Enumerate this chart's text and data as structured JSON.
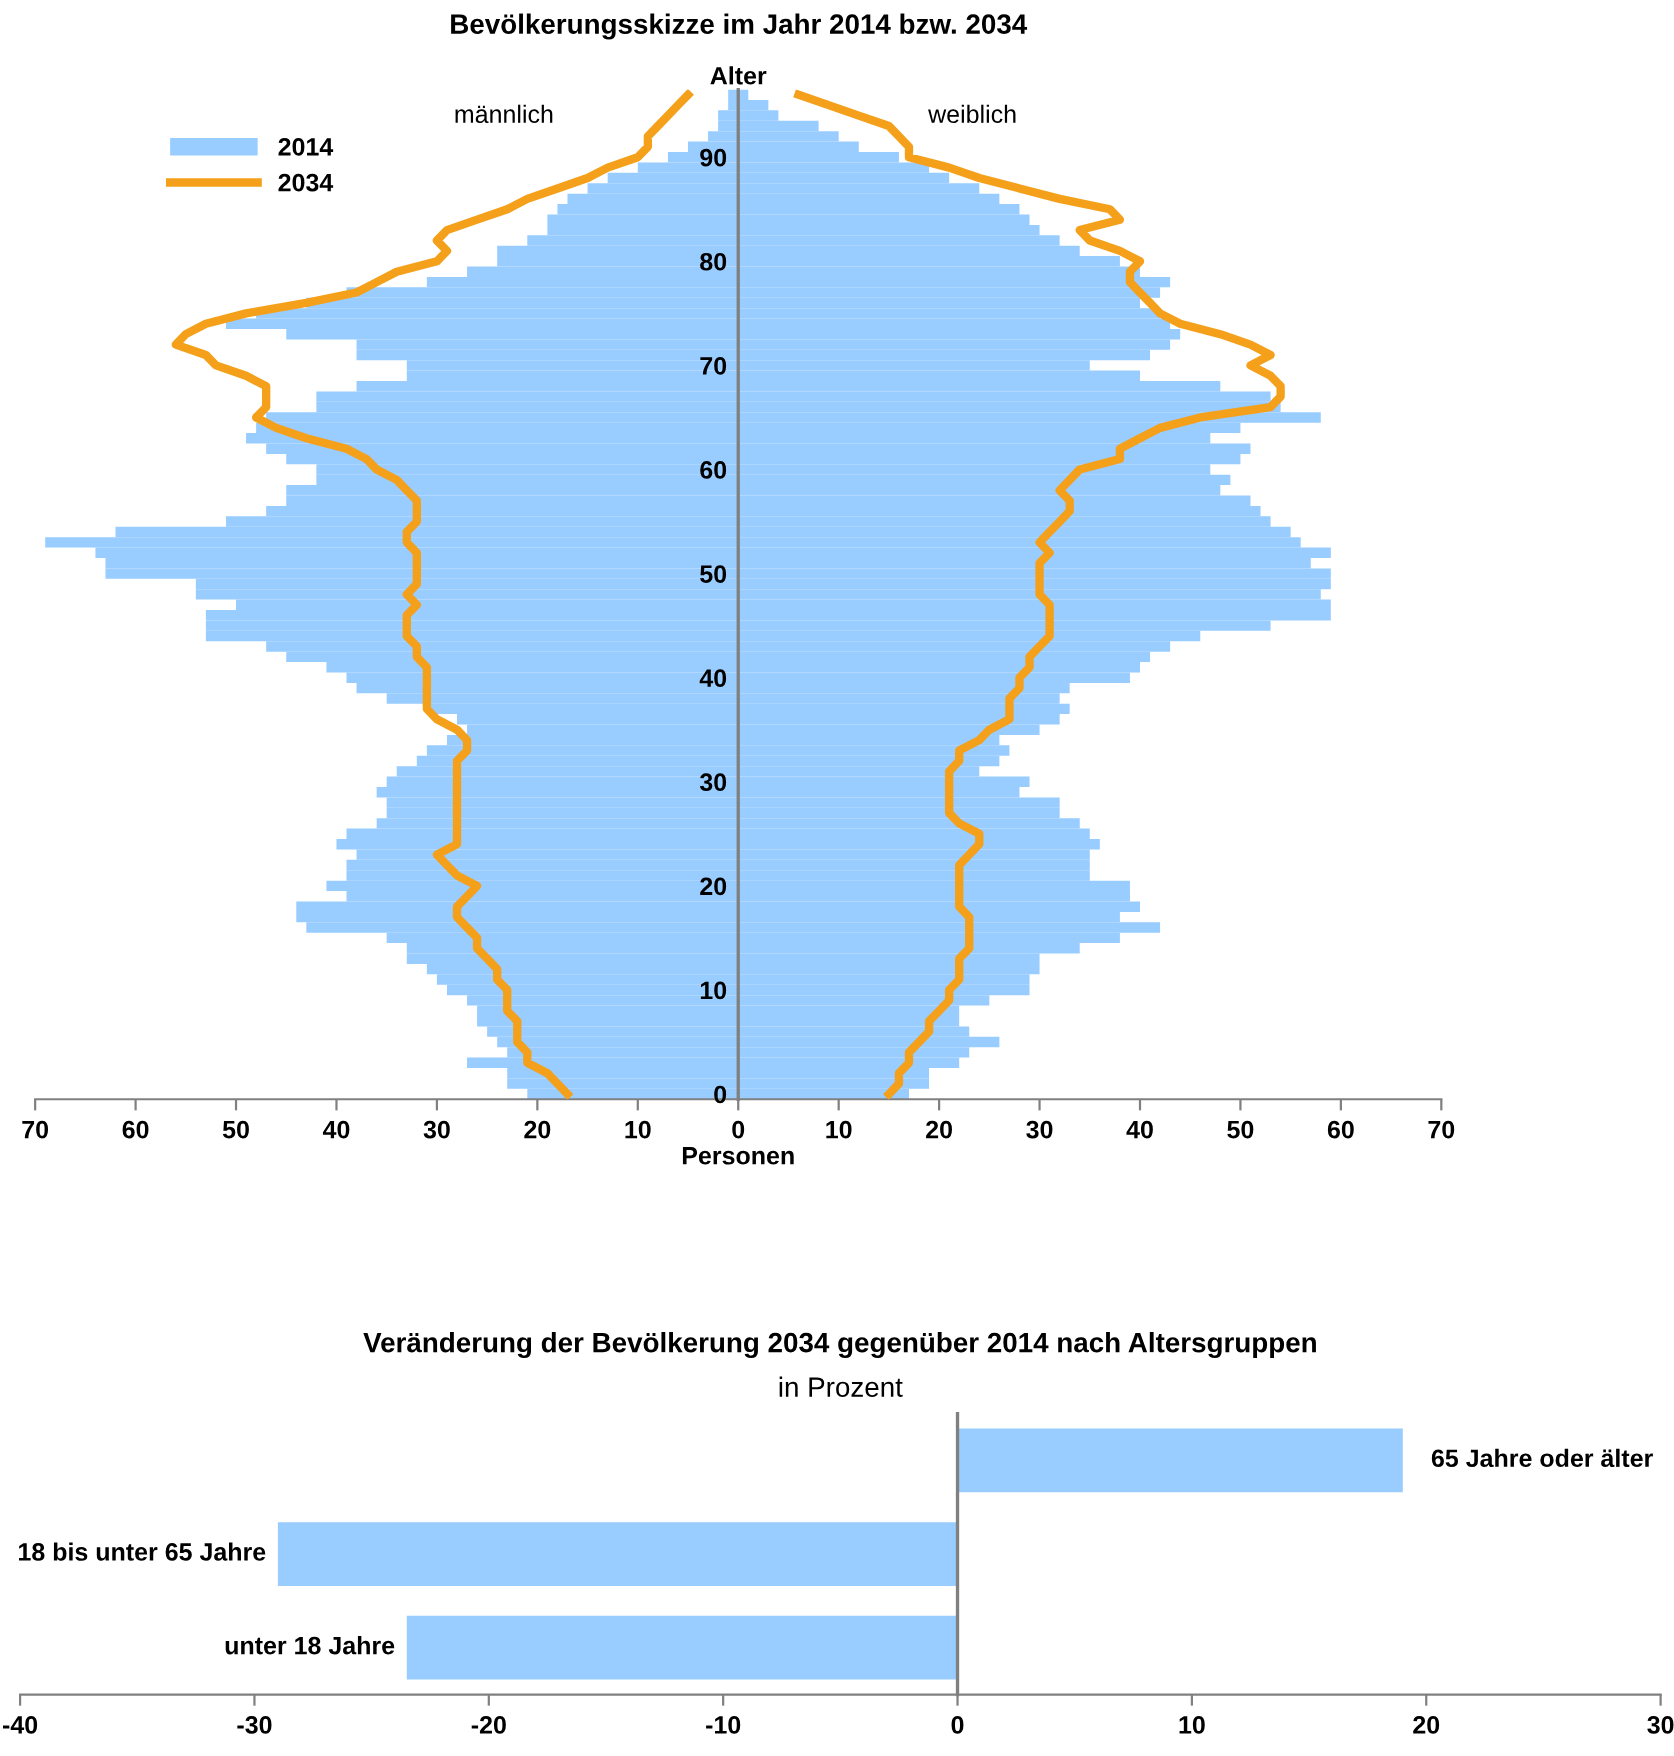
{
  "chart_data": [
    {
      "type": "bar",
      "orientation": "horizontal",
      "title": "Bevölkerungsskizze im Jahr 2014 bzw. 2034",
      "xlabel": "Personen",
      "ylabel": "Alter",
      "annotations": [
        "männlich",
        "weiblich"
      ],
      "categories": [
        null,
        null,
        null,
        null,
        null,
        null,
        "90",
        null,
        null,
        null,
        null,
        null,
        null,
        null,
        null,
        null,
        "80",
        null,
        null,
        null,
        null,
        null,
        null,
        null,
        null,
        null,
        "70",
        null,
        null,
        null,
        null,
        null,
        null,
        null,
        null,
        null,
        "60",
        null,
        null,
        null,
        null,
        null,
        null,
        null,
        null,
        null,
        "50",
        null,
        null,
        null,
        null,
        null,
        null,
        null,
        null,
        null,
        "40",
        null,
        null,
        null,
        null,
        null,
        null,
        null,
        null,
        null,
        "30",
        null,
        null,
        null,
        null,
        null,
        null,
        null,
        null,
        null,
        "20",
        null,
        null,
        null,
        null,
        null,
        null,
        null,
        null,
        null,
        "10",
        null,
        null,
        null,
        null,
        null,
        null,
        null,
        null,
        null,
        "0"
      ],
      "series": [
        {
          "name": "2014",
          "type": "bar",
          "color": "#99ccff",
          "values": [
            -1,
            -1,
            -2,
            -2,
            -3,
            -5,
            -7,
            -10,
            -13,
            -15,
            -17,
            -18,
            -19,
            -19,
            -21,
            -24,
            -24,
            -27,
            -31,
            -39,
            -43,
            -48,
            -51,
            -45,
            -38,
            -38,
            -33,
            -33,
            -38,
            -42,
            -42,
            -47,
            -48,
            -49,
            -47,
            -45,
            -42,
            -42,
            -45,
            -45,
            -47,
            -51,
            -62,
            -69,
            -64,
            -63,
            -63,
            -54,
            -54,
            -50,
            -53,
            -53,
            -53,
            -47,
            -45,
            -41,
            -39,
            -38,
            -35,
            -31,
            -28,
            -27,
            -29,
            -31,
            -32,
            -34,
            -35,
            -36,
            -35,
            -35,
            -36,
            -39,
            -40,
            -38,
            -39,
            -39,
            -41,
            -39,
            -44,
            -44,
            -43,
            -35,
            -33,
            -33,
            -31,
            -30,
            -29,
            -27,
            -26,
            -26,
            -25,
            -24,
            -23,
            -27,
            -23,
            -23,
            -21
          ]
        },
        {
          "type": "bar",
          "color": "#99ccff",
          "values": [
            1,
            3,
            4,
            8,
            10,
            12,
            16,
            19,
            21,
            24,
            26,
            28,
            29,
            30,
            32,
            34,
            38,
            40,
            43,
            42,
            40,
            42,
            43,
            44,
            43,
            41,
            35,
            40,
            48,
            53,
            54,
            58,
            50,
            47,
            51,
            50,
            47,
            49,
            48,
            51,
            52,
            53,
            55,
            56,
            59,
            57,
            59,
            59,
            58,
            59,
            59,
            53,
            46,
            43,
            41,
            40,
            39,
            33,
            32,
            33,
            32,
            30,
            26,
            27,
            26,
            24,
            29,
            28,
            32,
            32,
            34,
            35,
            36,
            35,
            35,
            35,
            39,
            39,
            40,
            38,
            42,
            38,
            34,
            30,
            30,
            29,
            29,
            25,
            22,
            22,
            23,
            26,
            23,
            22,
            19,
            19,
            17
          ]
        },
        {
          "name": "2034",
          "type": "line",
          "color": "#f5a01a",
          "values": [
            -5,
            -6,
            -7,
            -8,
            -9,
            -9,
            -10,
            -13,
            -15,
            -18,
            -21,
            -23,
            -26,
            -29,
            -30,
            -29,
            -30,
            -34,
            -36,
            -38,
            -43,
            -49,
            -53,
            -55,
            -56,
            -53,
            -52,
            -49,
            -47,
            -47,
            -47,
            -48,
            -46,
            -43,
            -39,
            -37,
            -36,
            -34,
            -33,
            -32,
            -32,
            -32,
            -33,
            -33,
            -32,
            -32,
            -32,
            -32,
            -33,
            -32,
            -33,
            -33,
            -33,
            -32,
            -32,
            -31,
            -31,
            -31,
            -31,
            -31,
            -30,
            -28,
            -27,
            -27,
            -28,
            -28,
            -28,
            -28,
            -28,
            -28,
            -28,
            -28,
            -28,
            -30,
            -29,
            -28,
            -26,
            -27,
            -28,
            -28,
            -27,
            -26,
            -26,
            -25,
            -24,
            -24,
            -23,
            -23,
            -23,
            -22,
            -22,
            -22,
            -21,
            -21,
            -19,
            -18,
            -17
          ]
        },
        {
          "type": "line",
          "color": "#f5a01a",
          "values": [
            6,
            9,
            12,
            15,
            16,
            17,
            17,
            21,
            24,
            28,
            32,
            37,
            38,
            34,
            35,
            38,
            40,
            39,
            39,
            40,
            41,
            42,
            44,
            48,
            51,
            53,
            51,
            53,
            54,
            54,
            53,
            46,
            42,
            40,
            38,
            38,
            34,
            33,
            32,
            33,
            33,
            32,
            31,
            30,
            31,
            30,
            30,
            30,
            30,
            31,
            31,
            31,
            31,
            30,
            29,
            29,
            28,
            28,
            27,
            27,
            27,
            25,
            24,
            22,
            22,
            21,
            21,
            21,
            21,
            21,
            22,
            24,
            24,
            23,
            22,
            22,
            22,
            22,
            22,
            23,
            23,
            23,
            23,
            22,
            22,
            22,
            21,
            21,
            20,
            19,
            19,
            18,
            17,
            17,
            16,
            16,
            15
          ]
        }
      ],
      "xlim": [
        -70,
        70
      ],
      "xticks": [
        {
          "value": -70,
          "label": "70"
        },
        {
          "value": -60,
          "label": "60"
        },
        {
          "value": -50,
          "label": "50"
        },
        {
          "value": -40,
          "label": "40"
        },
        {
          "value": -30,
          "label": "30"
        },
        {
          "value": -20,
          "label": "20"
        },
        {
          "value": -10,
          "label": "10"
        },
        0,
        10,
        20,
        30,
        40,
        50,
        60,
        70
      ],
      "legend": "top left",
      "stacked": true
    },
    {
      "type": "bar",
      "orientation": "horizontal",
      "title": "Veränderung der Bevölkerung 2034 gegenüber 2014 nach Altersgruppen",
      "subtitle": "in Prozent",
      "categories": [
        "65 Jahre oder älter",
        "18 bis unter 65 Jahre",
        "unter 18 Jahre"
      ],
      "values": [
        19,
        -29,
        -23.5
      ],
      "color": "#99ccff",
      "xlim": [
        -40,
        30
      ],
      "xticks": [
        -40,
        -30,
        -20,
        -10,
        0,
        10,
        20,
        30
      ]
    }
  ]
}
